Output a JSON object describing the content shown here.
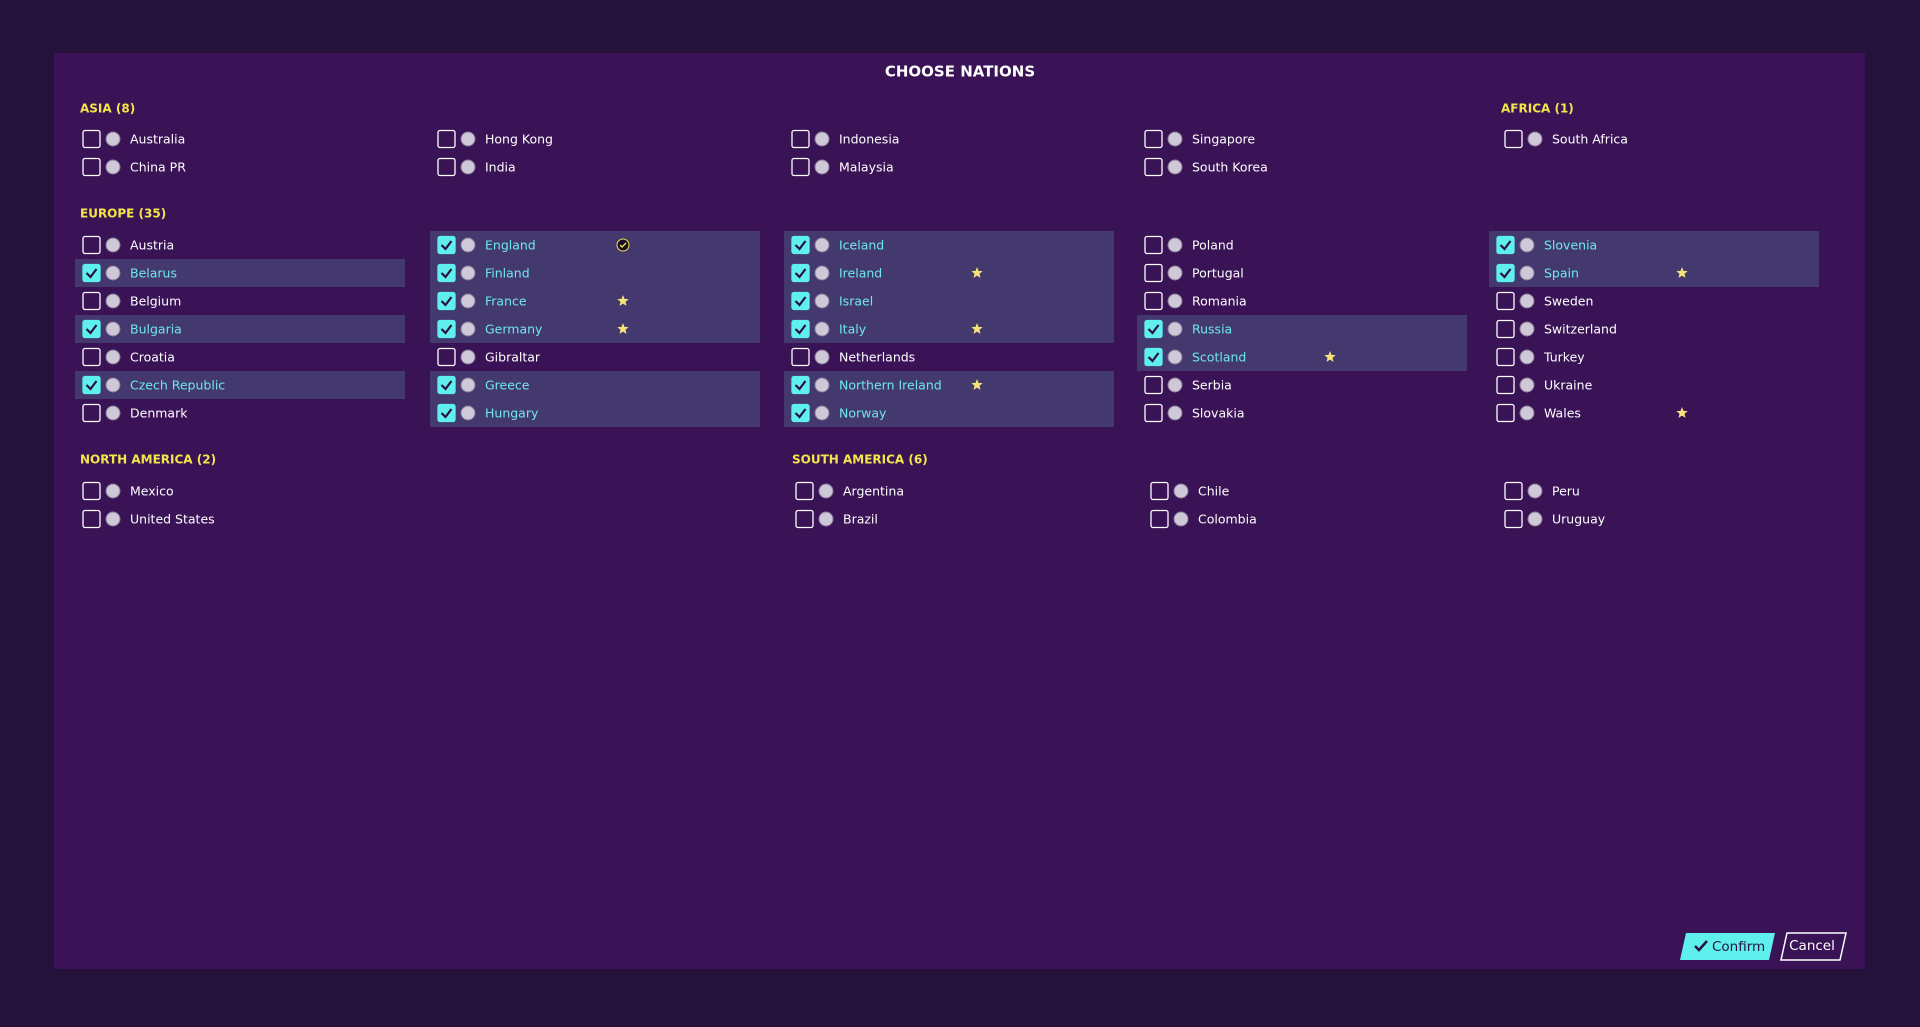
{
  "title": "CHOOSE NATIONS",
  "regions": [
    {
      "title": "ASIA (8)",
      "nations": [
        {
          "name": "Australia",
          "checked": false
        },
        {
          "name": "China PR",
          "checked": false
        },
        {
          "name": "Hong Kong",
          "checked": false
        },
        {
          "name": "India",
          "checked": false
        },
        {
          "name": "Indonesia",
          "checked": false
        },
        {
          "name": "Malaysia",
          "checked": false
        },
        {
          "name": "Singapore",
          "checked": false
        },
        {
          "name": "South Korea",
          "checked": false
        }
      ]
    },
    {
      "title": "AFRICA (1)",
      "nations": [
        {
          "name": "South Africa",
          "checked": false
        }
      ]
    },
    {
      "title": "EUROPE (35)",
      "nations": [
        {
          "name": "Austria",
          "checked": false
        },
        {
          "name": "Belarus",
          "checked": true
        },
        {
          "name": "Belgium",
          "checked": false
        },
        {
          "name": "Bulgaria",
          "checked": true
        },
        {
          "name": "Croatia",
          "checked": false
        },
        {
          "name": "Czech Republic",
          "checked": true
        },
        {
          "name": "Denmark",
          "checked": false
        },
        {
          "name": "England",
          "checked": true,
          "marker": "check"
        },
        {
          "name": "Finland",
          "checked": true
        },
        {
          "name": "France",
          "checked": true,
          "marker": "star"
        },
        {
          "name": "Germany",
          "checked": true,
          "marker": "star"
        },
        {
          "name": "Gibraltar",
          "checked": false
        },
        {
          "name": "Greece",
          "checked": true
        },
        {
          "name": "Hungary",
          "checked": true
        },
        {
          "name": "Iceland",
          "checked": true
        },
        {
          "name": "Ireland",
          "checked": true,
          "marker": "star"
        },
        {
          "name": "Israel",
          "checked": true
        },
        {
          "name": "Italy",
          "checked": true,
          "marker": "star"
        },
        {
          "name": "Netherlands",
          "checked": false
        },
        {
          "name": "Northern Ireland",
          "checked": true,
          "marker": "star"
        },
        {
          "name": "Norway",
          "checked": true
        },
        {
          "name": "Poland",
          "checked": false
        },
        {
          "name": "Portugal",
          "checked": false
        },
        {
          "name": "Romania",
          "checked": false
        },
        {
          "name": "Russia",
          "checked": true
        },
        {
          "name": "Scotland",
          "checked": true,
          "marker": "star"
        },
        {
          "name": "Serbia",
          "checked": false
        },
        {
          "name": "Slovakia",
          "checked": false
        },
        {
          "name": "Slovenia",
          "checked": true
        },
        {
          "name": "Spain",
          "checked": true,
          "marker": "star"
        },
        {
          "name": "Sweden",
          "checked": false
        },
        {
          "name": "Switzerland",
          "checked": false
        },
        {
          "name": "Turkey",
          "checked": false
        },
        {
          "name": "Ukraine",
          "checked": false
        },
        {
          "name": "Wales",
          "checked": false,
          "marker": "star"
        }
      ]
    },
    {
      "title": "NORTH AMERICA (2)",
      "nations": [
        {
          "name": "Mexico",
          "checked": false
        },
        {
          "name": "United States",
          "checked": false
        }
      ]
    },
    {
      "title": "SOUTH AMERICA (6)",
      "nations": [
        {
          "name": "Argentina",
          "checked": false
        },
        {
          "name": "Brazil",
          "checked": false
        },
        {
          "name": "Chile",
          "checked": false
        },
        {
          "name": "Colombia",
          "checked": false
        },
        {
          "name": "Peru",
          "checked": false
        },
        {
          "name": "Uruguay",
          "checked": false
        }
      ]
    }
  ],
  "buttons": {
    "confirm": "Confirm",
    "cancel": "Cancel"
  }
}
